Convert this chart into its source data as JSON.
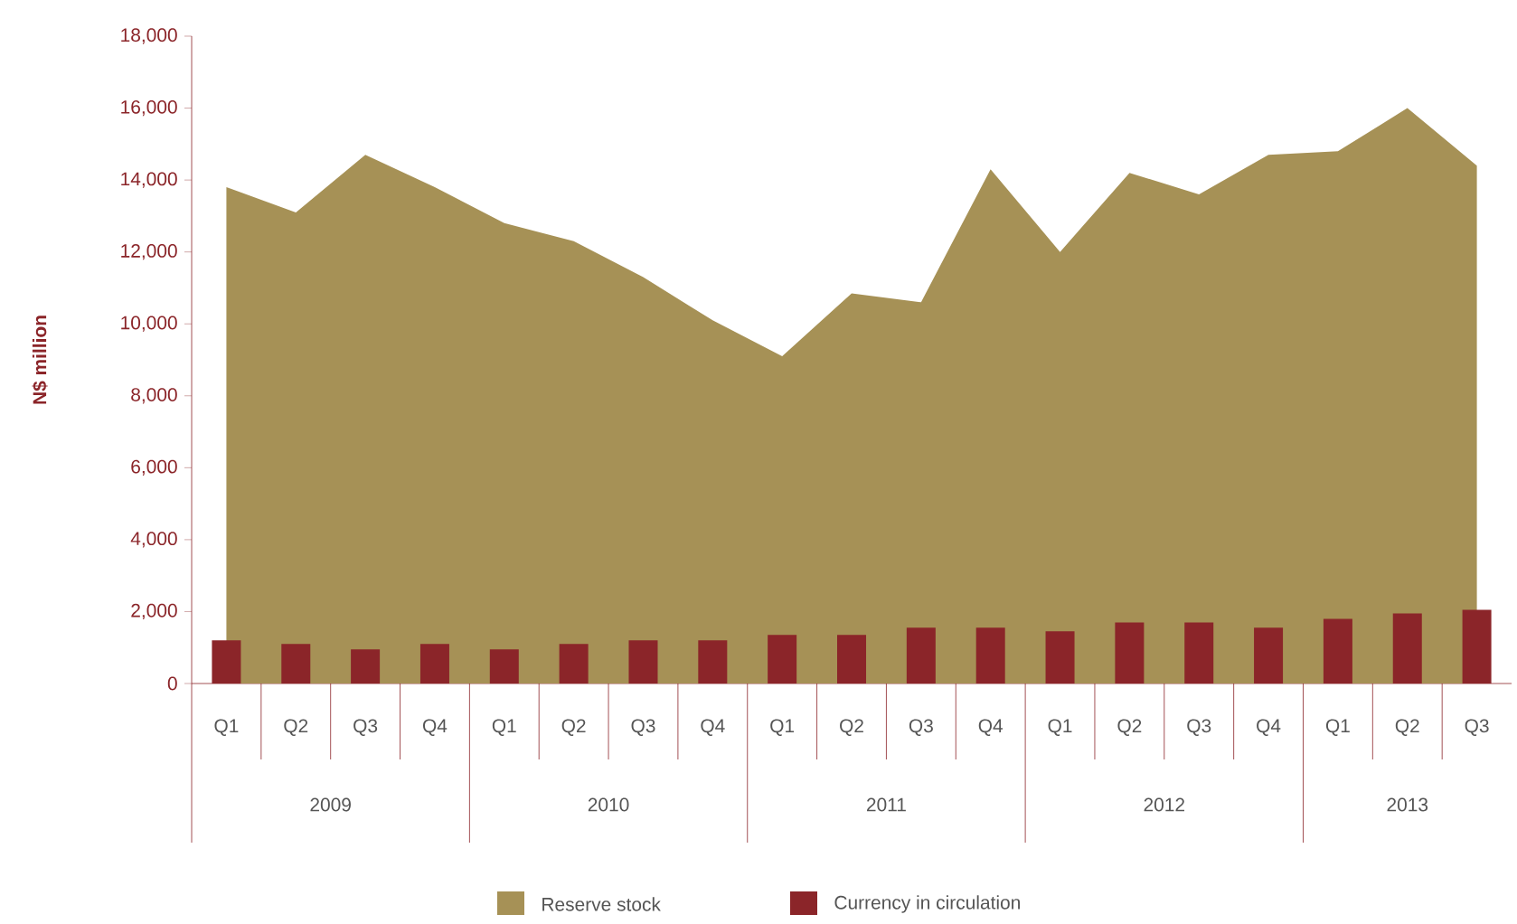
{
  "chart_data": {
    "type": "bar",
    "ylabel": "N$ million",
    "legend": "bottom",
    "categories": [
      "Q1",
      "Q2",
      "Q3",
      "Q4",
      "Q1",
      "Q2",
      "Q3",
      "Q4",
      "Q1",
      "Q2",
      "Q3",
      "Q4",
      "Q1",
      "Q2",
      "Q3",
      "Q4",
      "Q1",
      "Q2",
      "Q3"
    ],
    "annotations": [
      "2009",
      "2010",
      "2011",
      "2012",
      "2013"
    ],
    "ylim": [
      0,
      18000
    ],
    "yticks": [
      {
        "value": 0,
        "label": "0"
      },
      {
        "value": 2000,
        "label": "2,000"
      },
      {
        "value": 4000,
        "label": "4,000"
      },
      {
        "value": 6000,
        "label": "6,000"
      },
      {
        "value": 8000,
        "label": "8,000"
      },
      {
        "value": 10000,
        "label": "10,000"
      },
      {
        "value": 12000,
        "label": "12,000"
      },
      {
        "value": 14000,
        "label": "14,000"
      },
      {
        "value": 16000,
        "label": "16,000"
      },
      {
        "value": 18000,
        "label": "18,000"
      }
    ],
    "series": [
      {
        "name": "Reserve stock",
        "type": "area",
        "color": "#a69156",
        "values": [
          13800,
          13100,
          14700,
          13800,
          12800,
          12300,
          11300,
          10100,
          9100,
          10850,
          10600,
          14300,
          12000,
          14200,
          13600,
          14700,
          14800,
          16000,
          14400
        ]
      },
      {
        "name": "Currency in circulation",
        "color": "#8b2529",
        "values": [
          1200,
          1100,
          950,
          1100,
          950,
          1100,
          1200,
          1200,
          1350,
          1350,
          1550,
          1550,
          1450,
          1700,
          1700,
          1550,
          1800,
          1950,
          2050
        ]
      }
    ]
  }
}
